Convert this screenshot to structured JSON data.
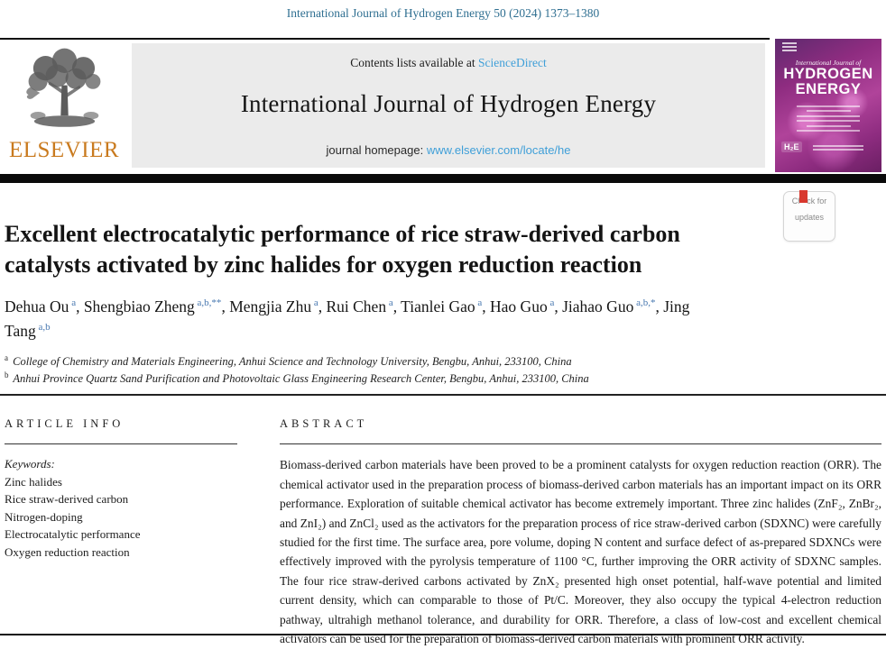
{
  "page": {
    "citation": "International Journal of Hydrogen Energy 50 (2024) 1373–1380"
  },
  "header": {
    "contents_prefix": "Contents lists available at ",
    "sciencedirect_label": "ScienceDirect",
    "journal_title": "International Journal of Hydrogen Energy",
    "homepage_prefix": "journal homepage: ",
    "homepage_url": "www.elsevier.com/locate/he",
    "elsevier_label": "ELSEVIER"
  },
  "cover": {
    "series_line": "International Journal of",
    "title_line1": "HYDROGEN",
    "title_line2": "ENERGY",
    "h2e_label": "H₂E"
  },
  "badge": {
    "line1": "Check for",
    "line2": "updates"
  },
  "article": {
    "title_line1": "Excellent electrocatalytic performance of rice straw-derived carbon",
    "title_line2": "catalysts activated by zinc halides for oxygen reduction reaction",
    "authors": [
      {
        "name": "Dehua Ou",
        "sup": "a"
      },
      {
        "name": "Shengbiao Zheng",
        "sup": "a,b,**"
      },
      {
        "name": "Mengjia Zhu",
        "sup": "a"
      },
      {
        "name": "Rui Chen",
        "sup": "a"
      },
      {
        "name": "Tianlei Gao",
        "sup": "a"
      },
      {
        "name": "Hao Guo",
        "sup": "a"
      },
      {
        "name": "Jiahao Guo",
        "sup": "a,b,*"
      },
      {
        "name": "Jing Tang",
        "sup": "a,b"
      }
    ],
    "affiliations": [
      {
        "sup": "a",
        "text": "College of Chemistry and Materials Engineering, Anhui Science and Technology University, Bengbu, Anhui, 233100, China"
      },
      {
        "sup": "b",
        "text": "Anhui Province Quartz Sand Purification and Photovoltaic Glass Engineering Research Center, Bengbu, Anhui, 233100, China"
      }
    ]
  },
  "article_info": {
    "heading": "ARTICLE INFO",
    "keywords_label": "Keywords:",
    "keywords": [
      "Zinc halides",
      "Rice straw-derived carbon",
      "Nitrogen-doping",
      "Electrocatalytic performance",
      "Oxygen reduction reaction"
    ]
  },
  "abstract_section": {
    "heading": "ABSTRACT",
    "text": "Biomass-derived carbon materials have been proved to be a prominent catalysts for oxygen reduction reaction (ORR). The chemical activator used in the preparation process of biomass-derived carbon materials has an important impact on its ORR performance. Exploration of suitable chemical activator has become extremely important. Three zinc halides (ZnF₂, ZnBr₂, and ZnI₂) and ZnCl₂ used as the activators for the preparation process of rice straw-derived carbon (SDXNC) were carefully studied for the first time. The surface area, pore volume, doping N content and surface defect of as-prepared SDXNCs were effectively improved with the pyrolysis temperature of 1100 °C, further improving the ORR activity of SDXNC samples. The four rice straw-derived carbons activated by ZnX₂ presented high onset potential, half-wave potential and limited current density, which can comparable to those of Pt/C. Moreover, they also occupy the typical 4-electron reduction pathway, ultrahigh methanol tolerance, and durability for ORR. Therefore, a class of low-cost and excellent chemical activators can be used for the preparation of biomass-derived carbon materials with prominent ORR activity."
  },
  "colors": {
    "citation_teal": "#2f6f91",
    "link_blue": "#3f9fd8",
    "banner_gray": "#ebebeb",
    "elsevier_orange": "#c97a1e",
    "cover_purple": "#8e2c80",
    "author_sup_blue": "#4878b0",
    "crossmark_red": "#d8382e",
    "crossmark_yellow": "#e8b71a",
    "crossmark_blue": "#4aa8d8",
    "rule_black": "#111111"
  }
}
